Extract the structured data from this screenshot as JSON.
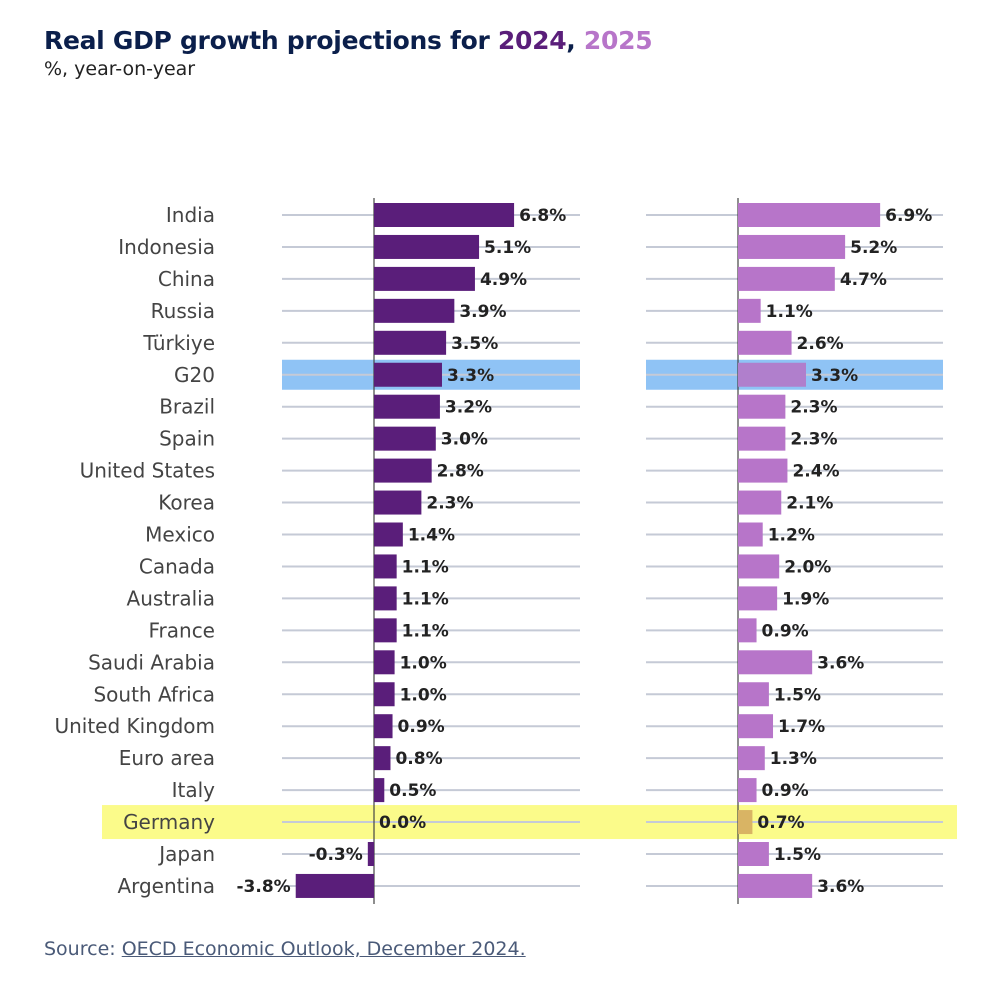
{
  "header": {
    "title_prefix": "Real GDP growth projections for ",
    "year_2024": "2024",
    "separator": ", ",
    "year_2025": "2025",
    "subtitle": "%, year-on-year"
  },
  "footer": {
    "source_label": "Source: ",
    "source_link": "OECD Economic Outlook, December 2024."
  },
  "colors": {
    "series_2024": "#5a1e7a",
    "series_2025": "#b775c9",
    "highlight_g20": "#8fc3f5",
    "highlight_germany": "#fbfb8a",
    "gridline": "#c5cad6",
    "axis": "#444444"
  },
  "chart_data": {
    "type": "bar",
    "orientation": "horizontal",
    "title": "Real GDP growth projections for 2024, 2025",
    "subtitle": "%, year-on-year",
    "unit": "%",
    "categories": [
      "India",
      "Indonesia",
      "China",
      "Russia",
      "Türkiye",
      "G20",
      "Brazil",
      "Spain",
      "United States",
      "Korea",
      "Mexico",
      "Canada",
      "Australia",
      "France",
      "Saudi Arabia",
      "South Africa",
      "United Kingdom",
      "Euro area",
      "Italy",
      "Germany",
      "Japan",
      "Argentina"
    ],
    "series": [
      {
        "name": "2024",
        "values": [
          6.8,
          5.1,
          4.9,
          3.9,
          3.5,
          3.3,
          3.2,
          3.0,
          2.8,
          2.3,
          1.4,
          1.1,
          1.1,
          1.1,
          1.0,
          1.0,
          0.9,
          0.8,
          0.5,
          0.0,
          -0.3,
          -3.8
        ],
        "labels": [
          "6.8%",
          "5.1%",
          "4.9%",
          "3.9%",
          "3.5%",
          "3.3%",
          "3.2%",
          "3.0%",
          "2.8%",
          "2.3%",
          "1.4%",
          "1.1%",
          "1.1%",
          "1.1%",
          "1.0%",
          "1.0%",
          "0.9%",
          "0.8%",
          "0.5%",
          "0.0%",
          "-0.3%",
          "-3.8%"
        ]
      },
      {
        "name": "2025",
        "values": [
          6.9,
          5.2,
          4.7,
          1.1,
          2.6,
          3.3,
          2.3,
          2.3,
          2.4,
          2.1,
          1.2,
          2.0,
          1.9,
          0.9,
          3.6,
          1.5,
          1.7,
          1.3,
          0.9,
          0.7,
          1.5,
          3.6
        ],
        "labels": [
          "6.9%",
          "5.2%",
          "4.7%",
          "1.1%",
          "2.6%",
          "3.3%",
          "2.3%",
          "2.3%",
          "2.4%",
          "2.1%",
          "1.2%",
          "2.0%",
          "1.9%",
          "0.9%",
          "3.6%",
          "1.5%",
          "1.7%",
          "1.3%",
          "0.9%",
          "0.7%",
          "1.5%",
          "3.6%"
        ]
      }
    ],
    "highlighted_categories": {
      "G20": "blue",
      "Germany": "yellow"
    },
    "legend": "none (years colour-coded in title)",
    "grid": true
  }
}
